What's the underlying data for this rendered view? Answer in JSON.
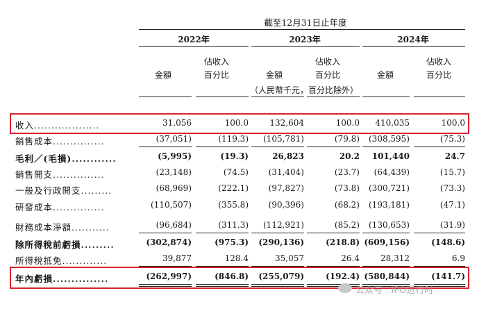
{
  "header": {
    "period": "截至12月31日止年度",
    "years": [
      "2022年",
      "2023年",
      "2024年"
    ],
    "amount": "金額",
    "pct_line1": "佔收入",
    "pct_line2": "百分比",
    "unit_note": "（人民幣千元，百分比除外）"
  },
  "rows": [
    {
      "label": "收入",
      "dots": "...................",
      "bold": false,
      "v": [
        "31,056",
        "100.0",
        "132,604",
        "100.0",
        "410,035",
        "100.0"
      ]
    },
    {
      "label": "銷售成本",
      "dots": "...............",
      "bold": false,
      "v": [
        "(37,051)",
        "(119.3)",
        "(105,781)",
        "(79.8)",
        "(308,595)",
        "(75.3)"
      ]
    },
    {
      "label": "毛利／(毛損)",
      "dots": "............",
      "bold": true,
      "v": [
        "(5,995)",
        "(19.3)",
        "26,823",
        "20.2",
        "101,440",
        "24.7"
      ]
    },
    {
      "label": "銷售開支",
      "dots": "...............",
      "bold": false,
      "v": [
        "(23,148)",
        "(74.5)",
        "(31,404)",
        "(23.7)",
        "(64,439)",
        "(15.7)"
      ]
    },
    {
      "label": "一般及行政開支",
      "dots": ".........",
      "bold": false,
      "v": [
        "(68,969)",
        "(222.1)",
        "(97,827)",
        "(73.8)",
        "(300,721)",
        "(73.3)"
      ]
    },
    {
      "label": "研發成本",
      "dots": "...............",
      "bold": false,
      "v": [
        "(110,507)",
        "(355.8)",
        "(90,396)",
        "(68.2)",
        "(193,181)",
        "(47.1)"
      ]
    },
    {
      "label": "財務成本淨額",
      "dots": "...........",
      "bold": false,
      "v": [
        "(96,684)",
        "(311.3)",
        "(112,921)",
        "(85.2)",
        "(130,653)",
        "(31.9)"
      ]
    },
    {
      "label": "除所得稅前虧損",
      "dots": ".........",
      "bold": true,
      "v": [
        "(302,874)",
        "(975.3)",
        "(290,136)",
        "(218.8)",
        "(609,156)",
        "(148.6)"
      ]
    },
    {
      "label": "所得稅抵免",
      "dots": ".............",
      "bold": false,
      "v": [
        "39,877",
        "128.4",
        "35,057",
        "26.4",
        "28,312",
        "6.9"
      ]
    },
    {
      "label": "年內虧損",
      "dots": "...............",
      "bold": true,
      "v": [
        "(262,997)",
        "(846.8)",
        "(255,079)",
        "(192.4)",
        "(580,844)",
        "(141.7)"
      ]
    }
  ],
  "watermark": "公众号 · IPO进行时"
}
